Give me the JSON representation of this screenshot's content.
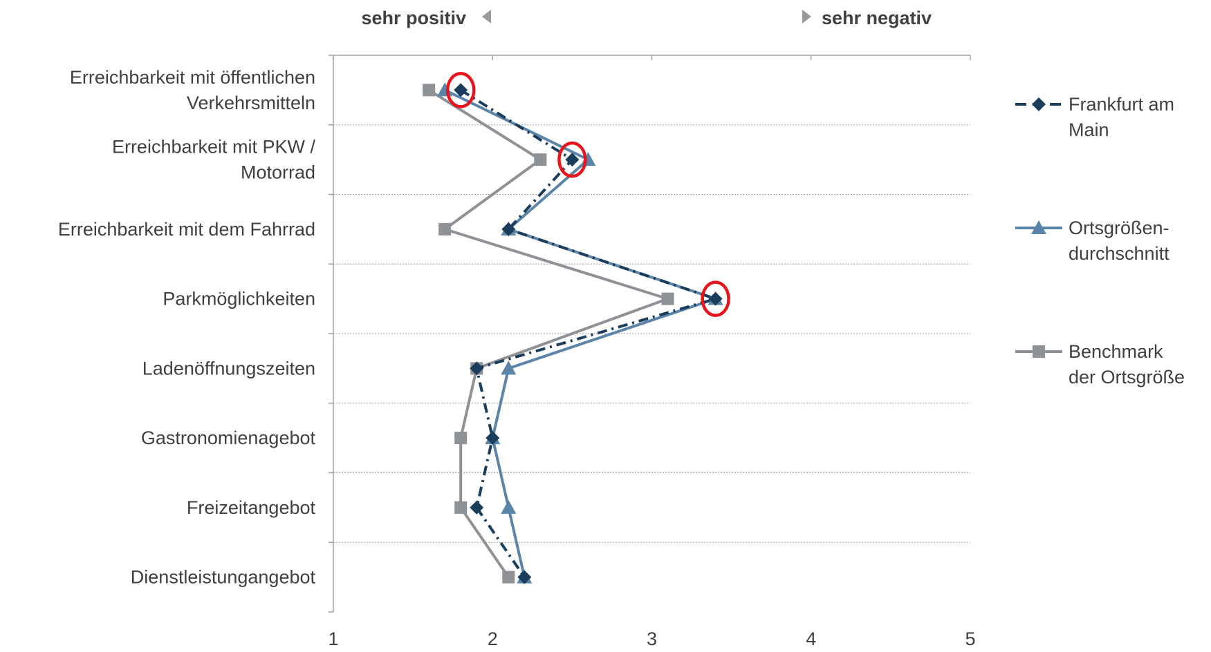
{
  "chart_data": {
    "type": "line",
    "orientation": "horizontal",
    "categories": [
      [
        "Erreichbarkeit mit öffentlichen",
        "Verkehrsmitteln"
      ],
      [
        "Erreichbarkeit mit PKW /",
        "Motorrad"
      ],
      [
        "Erreichbarkeit mit dem Fahrrad"
      ],
      [
        "Parkmöglichkeiten"
      ],
      [
        "Ladenöffnungszeiten"
      ],
      [
        "Gastronomienagebot"
      ],
      [
        "Freizeitangebot"
      ],
      [
        "Dienstleistungangebot"
      ]
    ],
    "series": [
      {
        "name": [
          "Frankfurt am",
          "Main"
        ],
        "values": [
          1.8,
          2.5,
          2.1,
          3.4,
          1.9,
          2.0,
          1.9,
          2.2
        ],
        "color": "#1a3d5c",
        "marker": "diamond",
        "dash": "dash-dot"
      },
      {
        "name": [
          "Ortsgrößen-",
          "durchschnitt"
        ],
        "values": [
          1.7,
          2.6,
          2.1,
          3.4,
          2.1,
          2.0,
          2.1,
          2.2
        ],
        "color": "#5a85a8",
        "marker": "triangle",
        "dash": "solid"
      },
      {
        "name": [
          "Benchmark",
          "der Ortsgröße"
        ],
        "values": [
          1.6,
          2.3,
          1.7,
          3.1,
          1.9,
          1.8,
          1.8,
          2.1
        ],
        "color": "#8e9196",
        "marker": "square",
        "dash": "solid"
      }
    ],
    "xlim": [
      1,
      5
    ],
    "xticks": [
      "1",
      "2",
      "3",
      "4",
      "5"
    ],
    "direction_labels": {
      "left": "sehr positiv",
      "right": "sehr negativ"
    },
    "highlight_circles": [
      {
        "category_index": 0,
        "value": 1.8
      },
      {
        "category_index": 1,
        "value": 2.5
      },
      {
        "category_index": 3,
        "value": 3.4
      }
    ],
    "highlight_color": "#e8141c",
    "grid": true,
    "legend_position": "right"
  }
}
